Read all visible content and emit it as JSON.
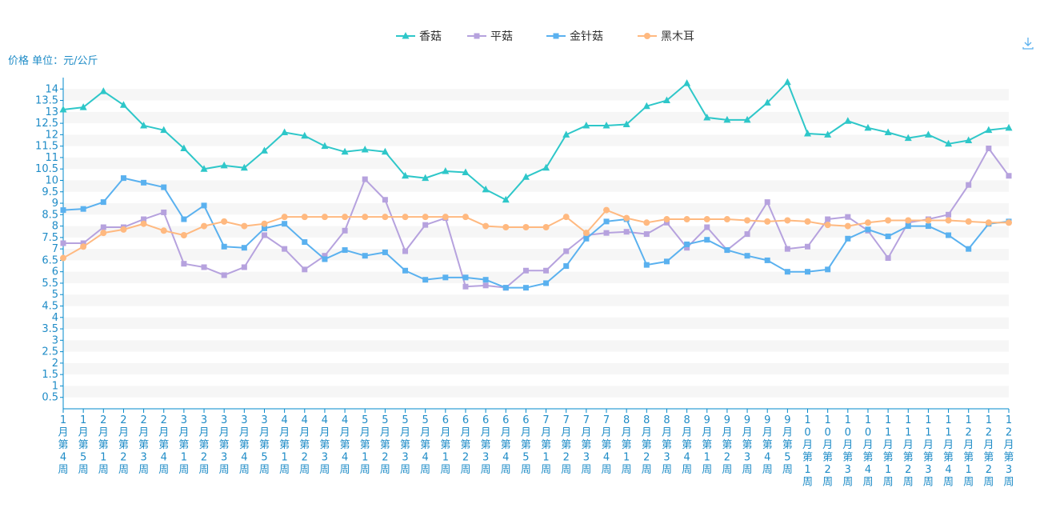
{
  "chart_data": {
    "type": "line",
    "ylabel": "价格 单位：元/公斤",
    "ylim": [
      0,
      14.5
    ],
    "yticks": [
      "0.5",
      "1",
      "1.5",
      "2",
      "2.5",
      "3",
      "3.5",
      "4",
      "4.5",
      "5",
      "5.5",
      "6",
      "6.5",
      "7",
      "7.5",
      "8",
      "8.5",
      "9",
      "9.5",
      "10",
      "10.5",
      "11",
      "11.5",
      "12",
      "12.5",
      "13",
      "13.5",
      "14"
    ],
    "categories": [
      "1月第4周",
      "1月第5周",
      "2月第1周",
      "2月第2周",
      "2月第3周",
      "2月第4周",
      "3月第1周",
      "3月第2周",
      "3月第3周",
      "3月第4周",
      "3月第5周",
      "4月第1周",
      "4月第2周",
      "4月第3周",
      "4月第4周",
      "5月第1周",
      "5月第2周",
      "5月第3周",
      "5月第4周",
      "6月第1周",
      "6月第2周",
      "6月第3周",
      "6月第4周",
      "6月第5周",
      "7月第1周",
      "7月第2周",
      "7月第3周",
      "7月第4周",
      "8月第1周",
      "8月第2周",
      "8月第3周",
      "8月第4周",
      "9月第1周",
      "9月第2周",
      "9月第3周",
      "9月第4周",
      "9月第5周",
      "10月第1周",
      "10月第2周",
      "10月第3周",
      "10月第4周",
      "11月第1周",
      "11月第2周",
      "11月第3周",
      "11月第4周",
      "12月第1周",
      "12月第2周",
      "12月第3周"
    ],
    "grid": "horizontal-bands",
    "legend_position": "top-center",
    "series": [
      {
        "name": "香菇",
        "color": "#2ec7c9",
        "marker": "triangle",
        "values": [
          13.1,
          13.2,
          13.9,
          13.3,
          12.4,
          12.2,
          11.4,
          10.5,
          10.65,
          10.55,
          11.3,
          12.1,
          11.95,
          11.5,
          11.25,
          11.35,
          11.25,
          10.2,
          10.1,
          10.4,
          10.35,
          9.6,
          9.15,
          10.15,
          10.55,
          12.0,
          12.4,
          12.4,
          12.45,
          13.25,
          13.5,
          14.25,
          12.75,
          12.65,
          12.65,
          13.4,
          14.3,
          12.05,
          12.0,
          12.6,
          12.3,
          12.1,
          11.85,
          12.0,
          11.6,
          11.75,
          12.2,
          12.3
        ]
      },
      {
        "name": "平菇",
        "color": "#b6a2de",
        "marker": "square",
        "values": [
          7.25,
          7.25,
          7.95,
          7.95,
          8.3,
          8.6,
          6.35,
          6.2,
          5.85,
          6.2,
          7.6,
          7.0,
          6.1,
          6.7,
          7.8,
          10.05,
          9.15,
          6.9,
          8.05,
          8.35,
          5.35,
          5.4,
          5.3,
          6.05,
          6.05,
          6.9,
          7.6,
          7.7,
          7.75,
          7.65,
          8.15,
          7.05,
          7.95,
          6.95,
          7.65,
          9.05,
          7.0,
          7.1,
          8.3,
          8.4,
          7.8,
          6.6,
          8.15,
          8.3,
          8.5,
          9.8,
          11.4,
          10.2
        ]
      },
      {
        "name": "金针菇",
        "color": "#5ab1ef",
        "marker": "square",
        "values": [
          8.7,
          8.75,
          9.05,
          10.1,
          9.9,
          9.7,
          8.3,
          8.9,
          7.1,
          7.05,
          7.9,
          8.1,
          7.3,
          6.55,
          6.95,
          6.7,
          6.85,
          6.05,
          5.65,
          5.75,
          5.75,
          5.65,
          5.3,
          5.3,
          5.5,
          6.25,
          7.45,
          8.2,
          8.3,
          6.3,
          6.45,
          7.2,
          7.4,
          6.95,
          6.7,
          6.5,
          6.0,
          6.0,
          6.1,
          7.45,
          7.85,
          7.55,
          8.0,
          8.0,
          7.6,
          7.0,
          8.1,
          8.2
        ]
      },
      {
        "name": "黑木耳",
        "color": "#ffb980",
        "marker": "circle",
        "values": [
          6.6,
          7.1,
          7.7,
          7.85,
          8.1,
          7.8,
          7.6,
          8.0,
          8.2,
          8.0,
          8.1,
          8.4,
          8.4,
          8.4,
          8.4,
          8.4,
          8.4,
          8.4,
          8.4,
          8.4,
          8.4,
          8.0,
          7.95,
          7.95,
          7.95,
          8.4,
          7.7,
          8.7,
          8.35,
          8.15,
          8.3,
          8.3,
          8.3,
          8.3,
          8.25,
          8.2,
          8.25,
          8.2,
          8.05,
          8.0,
          8.15,
          8.25,
          8.25,
          8.25,
          8.25,
          8.2,
          8.15,
          8.15
        ]
      }
    ]
  },
  "toolbar": {
    "download_icon": "download-icon"
  }
}
